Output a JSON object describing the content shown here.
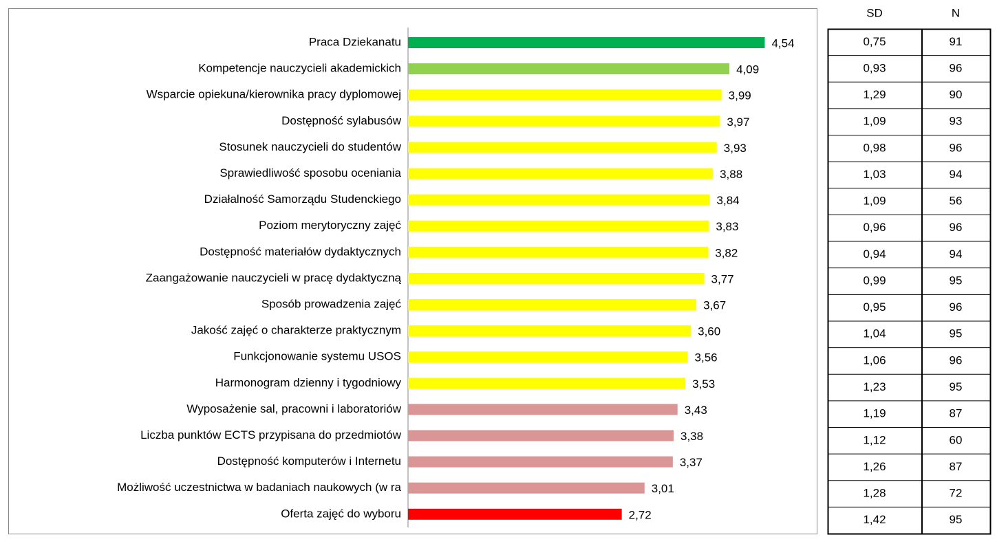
{
  "chart_data": {
    "type": "bar",
    "orientation": "horizontal",
    "categories": [
      "Praca Dziekanatu",
      "Kompetencje nauczycieli akademickich",
      "Wsparcie opiekuna/kierownika pracy dyplomowej",
      "Dostępność sylabusów",
      "Stosunek nauczycieli do studentów",
      "Sprawiedliwość sposobu oceniania",
      "Działalność Samorządu Studenckiego",
      "Poziom merytoryczny zajęć",
      "Dostępność materiałów dydaktycznych",
      "Zaangażowanie nauczycieli w pracę dydaktyczną",
      "Sposób prowadzenia zajęć",
      "Jakość zajęć o charakterze praktycznym",
      "Funkcjonowanie systemu USOS",
      "Harmonogram dzienny i tygodniowy",
      "Wyposażenie sal, pracowni i laboratoriów",
      "Liczba punktów ECTS przypisana do przedmiotów",
      "Dostępność komputerów i Internetu",
      "Możliwość uczestnictwa w badaniach naukowych (w ra",
      "Oferta zajęć do wyboru"
    ],
    "values": [
      4.54,
      4.09,
      3.99,
      3.97,
      3.93,
      3.88,
      3.84,
      3.83,
      3.82,
      3.77,
      3.67,
      3.6,
      3.56,
      3.53,
      3.43,
      3.38,
      3.37,
      3.01,
      2.72
    ],
    "value_labels": [
      "4,54",
      "4,09",
      "3,99",
      "3,97",
      "3,93",
      "3,88",
      "3,84",
      "3,83",
      "3,82",
      "3,77",
      "3,67",
      "3,60",
      "3,56",
      "3,53",
      "3,43",
      "3,38",
      "3,37",
      "3,01",
      "2,72"
    ],
    "colors": [
      "#00b050",
      "#92d050",
      "#ffff00",
      "#ffff00",
      "#ffff00",
      "#ffff00",
      "#ffff00",
      "#ffff00",
      "#ffff00",
      "#ffff00",
      "#ffff00",
      "#ffff00",
      "#ffff00",
      "#ffff00",
      "#da9694",
      "#da9694",
      "#da9694",
      "#da9694",
      "#ff0000"
    ],
    "xlim": [
      0,
      5
    ]
  },
  "table": {
    "header": [
      "SD",
      "N"
    ],
    "rows": [
      [
        "0,75",
        "91"
      ],
      [
        "0,93",
        "96"
      ],
      [
        "1,29",
        "90"
      ],
      [
        "1,09",
        "93"
      ],
      [
        "0,98",
        "96"
      ],
      [
        "1,03",
        "94"
      ],
      [
        "1,09",
        "56"
      ],
      [
        "0,96",
        "96"
      ],
      [
        "0,94",
        "94"
      ],
      [
        "0,99",
        "95"
      ],
      [
        "0,95",
        "96"
      ],
      [
        "1,04",
        "95"
      ],
      [
        "1,06",
        "96"
      ],
      [
        "1,23",
        "95"
      ],
      [
        "1,19",
        "87"
      ],
      [
        "1,12",
        "60"
      ],
      [
        "1,26",
        "87"
      ],
      [
        "1,28",
        "72"
      ],
      [
        "1,42",
        "95"
      ]
    ]
  }
}
